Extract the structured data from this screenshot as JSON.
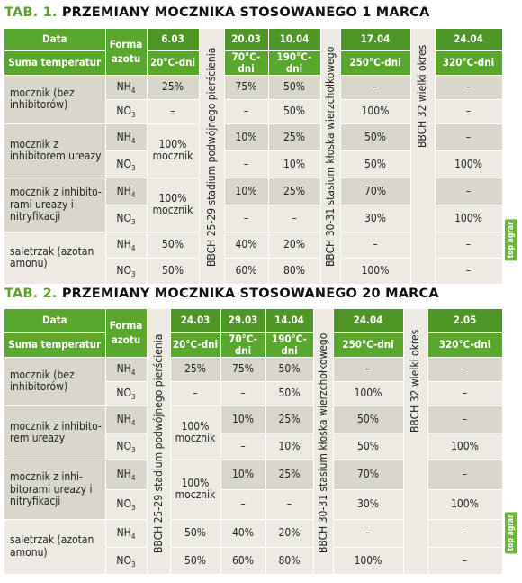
{
  "table1": {
    "title_tab": "TAB. 1.",
    "title_rest": "PRZEMIANY MOCZNIKA STOSOWANEGO 1 MARCA",
    "header": {
      "data_label": "Data",
      "suma_label": "Suma temperatur",
      "forma_label": "Forma azotu",
      "dates": [
        "6.03",
        "20.03",
        "10.04",
        "17.04",
        "24.04"
      ],
      "temps": [
        "20°C-dni",
        "70°C-dni",
        "190°C-dni",
        "250°C-dni",
        "320°C-dni"
      ]
    },
    "stage1": "BBCH 25-29 stadium podwójnego pierścienia",
    "stage2": "BBCH 30-31 stasium kłoska wierzchołkowego",
    "stage3": "BBCH 32 wielki okres",
    "rows": [
      {
        "label": "mocznik (bez inhibitorów)",
        "forms": [
          "NH4",
          "NO3"
        ],
        "c1": [
          "25%",
          "–"
        ],
        "c2": [
          "75%",
          "–"
        ],
        "c3": [
          "50%",
          "50%"
        ],
        "c4": [
          "–",
          "100%"
        ],
        "c5": [
          "–",
          "–"
        ]
      },
      {
        "label": "mocznik z inhibitorem ureazy",
        "forms": [
          "NH4",
          "NO3"
        ],
        "c1": "100% mocznik",
        "c2": [
          "10%",
          "–"
        ],
        "c3": [
          "25%",
          "10%"
        ],
        "c4": [
          "50%",
          "50%"
        ],
        "c5": [
          "–",
          "100%"
        ]
      },
      {
        "label": "mocznik z inhibito- rami ureazy i nitryfikacji",
        "forms": [
          "NH4",
          "NO3"
        ],
        "c1": "100% mocznik",
        "c2": [
          "10%",
          "–"
        ],
        "c3": [
          "25%",
          "–"
        ],
        "c4": [
          "70%",
          "30%"
        ],
        "c5": [
          "–",
          "100%"
        ]
      },
      {
        "label": "saletrzak (azotan amonu)",
        "forms": [
          "NH4",
          "NO3"
        ],
        "c1": [
          "50%",
          "50%"
        ],
        "c2": [
          "40%",
          "60%"
        ],
        "c3": [
          "20%",
          "80%"
        ],
        "c4": [
          "–",
          "100%"
        ],
        "c5": [
          "–",
          "–"
        ]
      }
    ]
  },
  "table2": {
    "title_tab": "TAB. 2.",
    "title_rest": "PRZEMIANY MOCZNIKA STOSOWANEGO 20 MARCA",
    "header": {
      "data_label": "Data",
      "suma_label": "Suma temperatur",
      "forma_label": "Forma azotu",
      "dates": [
        "24.03",
        "29.03",
        "14.04",
        "24.04",
        "2.05"
      ],
      "temps": [
        "20°C-dni",
        "70°C-dni",
        "190°C-dni",
        "250°C-dni",
        "320°C-dni"
      ]
    },
    "stage1": "BBCH 25-29 stadium podwójnego pierścienia",
    "stage2": "BBCH 30-31 stasium kłoska wierzchołkowego",
    "stage3": "BBCH 32 wielki okres",
    "rows": [
      {
        "label": "mocznik (bez inhibitorów)",
        "forms": [
          "NH4",
          "NO3"
        ],
        "c1": [
          "25%",
          "–"
        ],
        "c2": [
          "75%",
          "–"
        ],
        "c3": [
          "50%",
          "50%"
        ],
        "c4": [
          "–",
          "100%"
        ],
        "c5": [
          "–",
          "–"
        ]
      },
      {
        "label": "mocznik z inhibito- rem ureazy",
        "forms": [
          "NH4",
          "NO3"
        ],
        "c1": "100% mocznik",
        "c2": [
          "10%",
          "–"
        ],
        "c3": [
          "25%",
          "10%"
        ],
        "c4": [
          "50%",
          "50%"
        ],
        "c5": [
          "–",
          "100%"
        ]
      },
      {
        "label": "mocznik z inhi- bitorami ureazy i nitryfikacji",
        "forms": [
          "NH4",
          "NO3"
        ],
        "c1": "100% mocznik",
        "c2": [
          "10%",
          "–"
        ],
        "c3": [
          "25%",
          "–"
        ],
        "c4": [
          "70%",
          "30%"
        ],
        "c5": [
          "–",
          "100%"
        ]
      },
      {
        "label": "saletrzak (azotan amonu)",
        "forms": [
          "NH4",
          "NO3"
        ],
        "c1": [
          "50%",
          "50%"
        ],
        "c2": [
          "40%",
          "60%"
        ],
        "c3": [
          "20%",
          "80%"
        ],
        "c4": [
          "–",
          "100%"
        ],
        "c5": [
          "–",
          "–"
        ]
      }
    ]
  },
  "brand_mark": "top agrar",
  "colors": {
    "header_green": "#5aa72e",
    "row_dark": "#d9d7cb",
    "row_light": "#eceae2",
    "tab_green": "#5f9e2f"
  }
}
